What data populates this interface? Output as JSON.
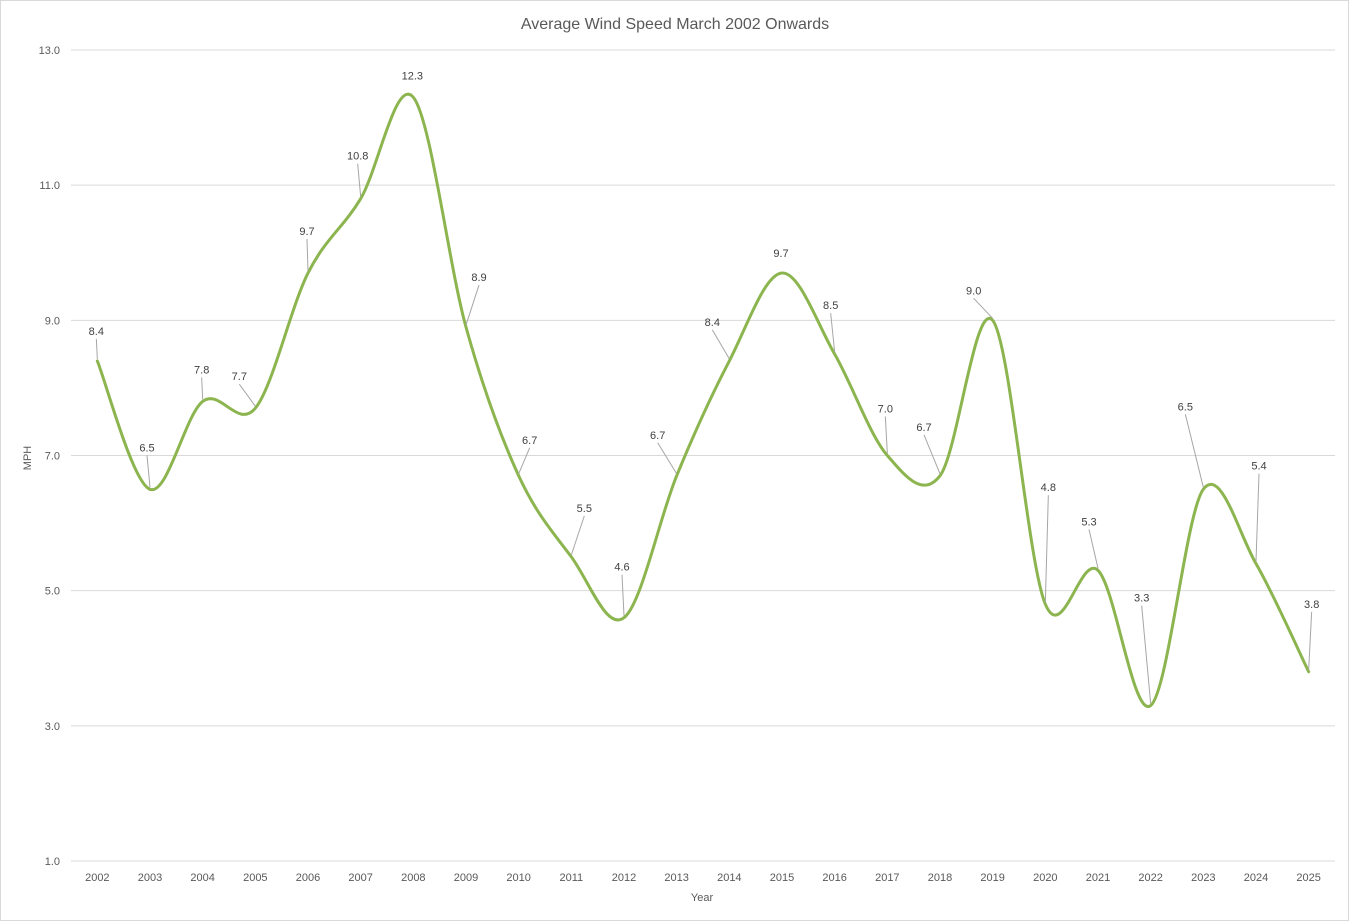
{
  "chart_data": {
    "type": "line",
    "title": "Average Wind Speed March 2002 Onwards",
    "xlabel": "Year",
    "ylabel": "MPH",
    "categories": [
      "2002",
      "2003",
      "2004",
      "2005",
      "2006",
      "2007",
      "2008",
      "2009",
      "2010",
      "2011",
      "2012",
      "2013",
      "2014",
      "2015",
      "2016",
      "2017",
      "2018",
      "2019",
      "2020",
      "2021",
      "2022",
      "2023",
      "2024",
      "2025"
    ],
    "series": [
      {
        "name": "",
        "values": [
          8.4,
          6.5,
          7.8,
          7.7,
          9.7,
          10.8,
          12.3,
          8.9,
          6.7,
          5.5,
          4.6,
          6.7,
          8.4,
          9.7,
          8.5,
          7.0,
          6.7,
          9.0,
          4.8,
          5.3,
          3.3,
          6.5,
          5.4,
          3.8
        ],
        "labels": [
          "8.4",
          "6.5",
          "7.8",
          "7.7",
          "9.7",
          "10.8",
          "12.3",
          "8.9",
          "6.7",
          "5.5",
          "4.6",
          "6.7",
          "8.4",
          "9.7",
          "8.5",
          "7.0",
          "6.7",
          "9.0",
          "4.8",
          "5.3",
          "3.3",
          "6.5",
          "5.4",
          "3.8"
        ],
        "color": "#8cb54f",
        "smoothed": true
      }
    ],
    "yticks": [
      "1.0",
      "3.0",
      "5.0",
      "7.0",
      "9.0",
      "11.0",
      "13.0"
    ],
    "ylim": [
      1,
      13
    ],
    "grid": true,
    "legend": "none"
  }
}
